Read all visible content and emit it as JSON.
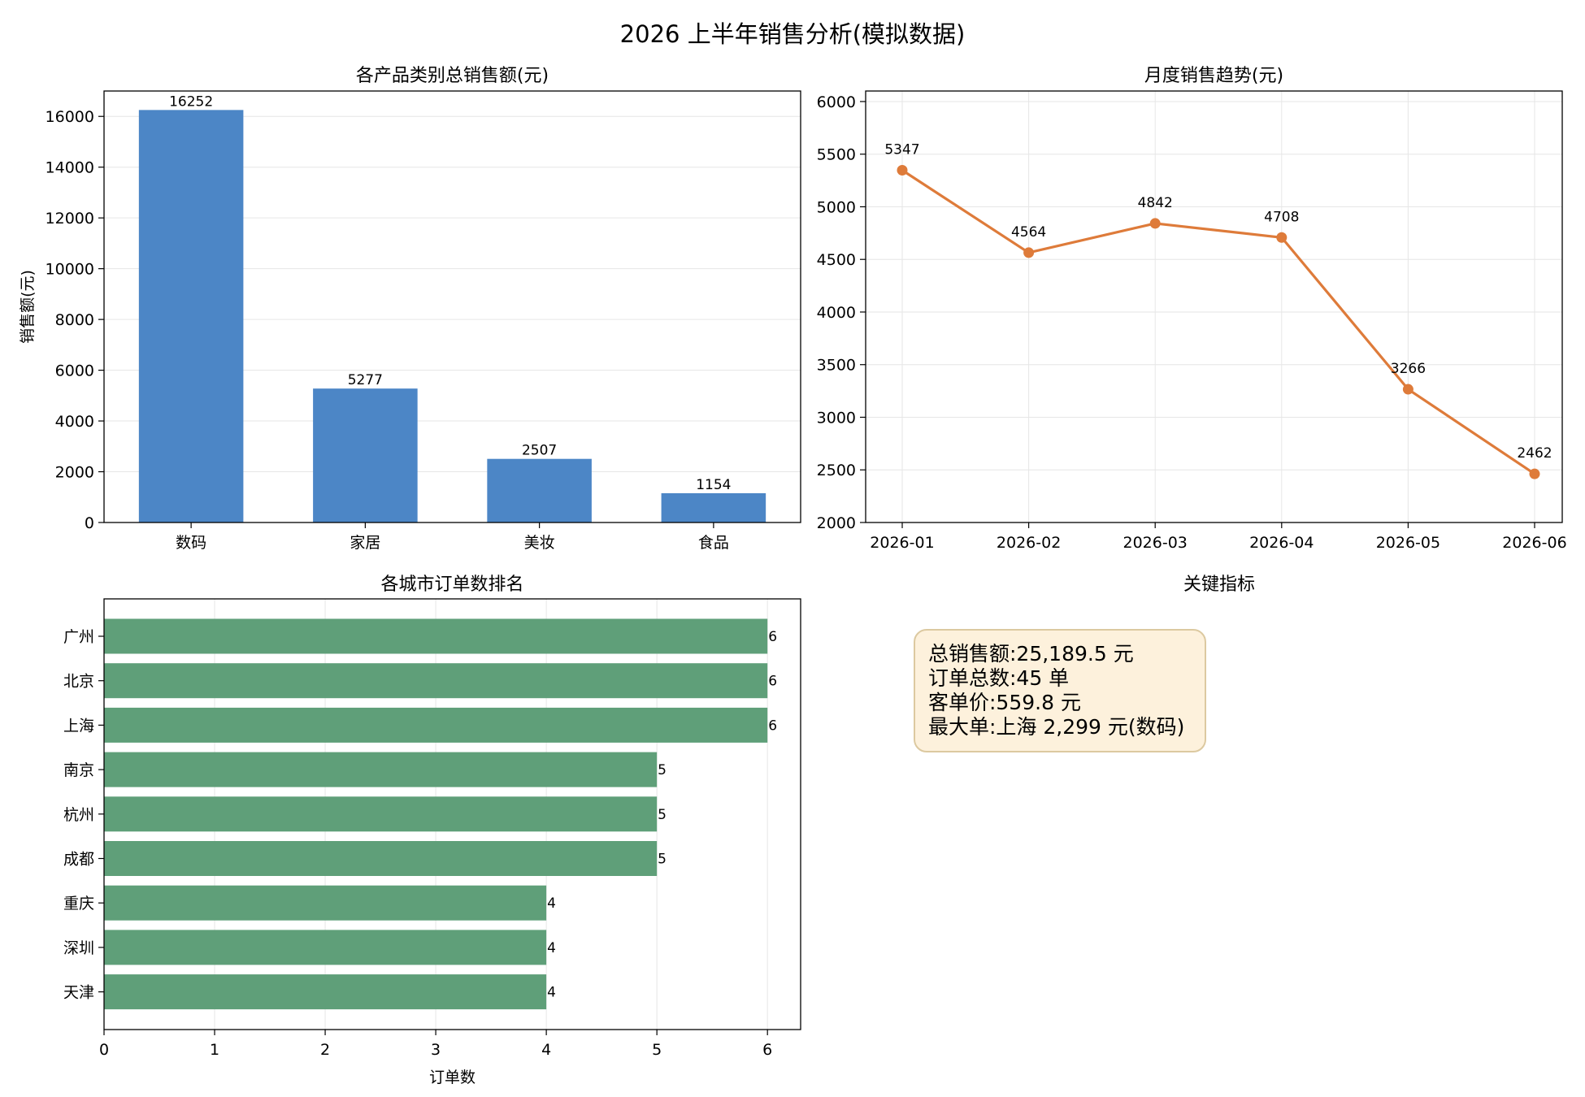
{
  "title": "2026 上半年销售分析(模拟数据)",
  "colors": {
    "bar": "#4c86c6",
    "line": "#de7b3a",
    "hbar": "#5f9f79",
    "kpi_bg": "#fdf1dc",
    "kpi_border": "#dcc9a0"
  },
  "chart_data": [
    {
      "type": "bar",
      "title": "各产品类别总销售额(元)",
      "categories": [
        "数码",
        "家居",
        "美妆",
        "食品"
      ],
      "values": [
        16252,
        5277,
        2507,
        1154
      ],
      "xlabel": "",
      "ylabel": "销售额(元)",
      "ylim": [
        0,
        17000
      ],
      "yticks": [
        0,
        2000,
        4000,
        6000,
        8000,
        10000,
        12000,
        14000,
        16000
      ],
      "grid": "y"
    },
    {
      "type": "line",
      "title": "月度销售趋势(元)",
      "x": [
        "2026-01",
        "2026-02",
        "2026-03",
        "2026-04",
        "2026-05",
        "2026-06"
      ],
      "values": [
        5347,
        4564,
        4842,
        4708,
        3266,
        2462
      ],
      "xlabel": "",
      "ylabel": "",
      "ylim": [
        2000,
        6100
      ],
      "yticks": [
        2000,
        2500,
        3000,
        3500,
        4000,
        4500,
        5000,
        5500,
        6000
      ],
      "grid": "both"
    },
    {
      "type": "bar",
      "orientation": "horizontal",
      "title": "各城市订单数排名",
      "categories": [
        "广州",
        "北京",
        "上海",
        "南京",
        "杭州",
        "成都",
        "重庆",
        "深圳",
        "天津"
      ],
      "values": [
        6,
        6,
        6,
        5,
        5,
        5,
        4,
        4,
        4
      ],
      "xlabel": "订单数",
      "ylabel": "",
      "xlim": [
        0,
        6.3
      ],
      "xticks": [
        0,
        1,
        2,
        3,
        4,
        5,
        6
      ],
      "grid": "x"
    }
  ],
  "kpi": {
    "title": "关键指标",
    "lines": [
      "总销售额:25,189.5 元",
      "订单总数:45 单",
      "客单价:559.8 元",
      "最大单:上海 2,299 元(数码)"
    ]
  }
}
